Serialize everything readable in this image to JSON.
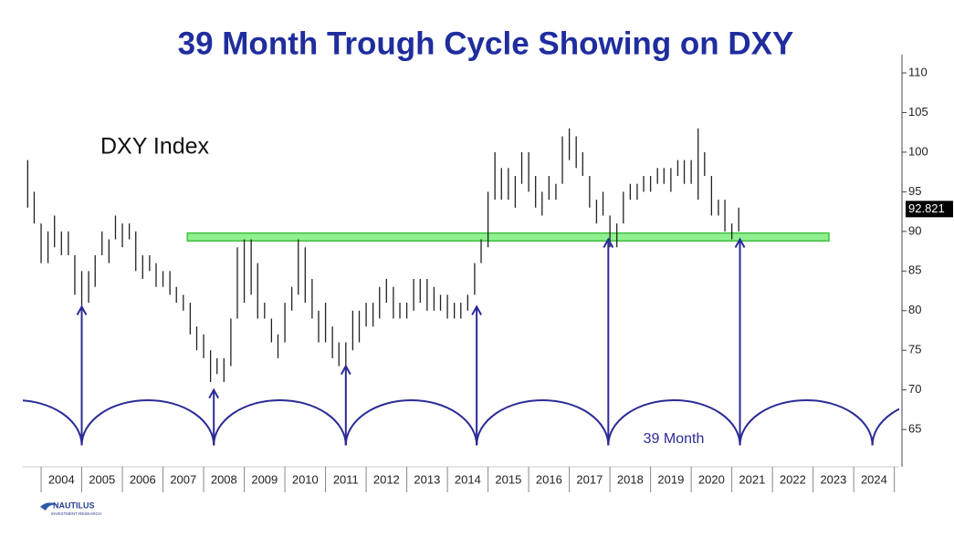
{
  "chart_data": {
    "type": "range_bar",
    "title": "39 Month Trough Cycle Showing on DXY",
    "annotation": "DXY Index",
    "cycle_label": "39 Month",
    "logo": {
      "name": "NAUTILUS",
      "tagline": "INVESTMENT RESEARCH"
    },
    "color": "#222222",
    "accent_color": "#2b2b96",
    "title_color": "#1f2d9e",
    "xlim": [
      2003.55,
      2025.12
    ],
    "ylim": [
      60.3,
      112.3
    ],
    "yticks": [
      65,
      70,
      75,
      80,
      85,
      90,
      95,
      100,
      105,
      110
    ],
    "xticks": [
      {
        "value": 2004.5,
        "label": "2004"
      },
      {
        "value": 2005.5,
        "label": "2005"
      },
      {
        "value": 2006.5,
        "label": "2006"
      },
      {
        "value": 2007.5,
        "label": "2007"
      },
      {
        "value": 2008.5,
        "label": "2008"
      },
      {
        "value": 2009.5,
        "label": "2009"
      },
      {
        "value": 2010.5,
        "label": "2010"
      },
      {
        "value": 2011.5,
        "label": "2011"
      },
      {
        "value": 2012.5,
        "label": "2012"
      },
      {
        "value": 2013.5,
        "label": "2013"
      },
      {
        "value": 2014.5,
        "label": "2014"
      },
      {
        "value": 2015.5,
        "label": "2015"
      },
      {
        "value": 2016.5,
        "label": "2016"
      },
      {
        "value": 2017.5,
        "label": "2017"
      },
      {
        "value": 2018.5,
        "label": "2018"
      },
      {
        "value": 2019.5,
        "label": "2019"
      },
      {
        "value": 2020.5,
        "label": "2020"
      },
      {
        "value": 2021.5,
        "label": "2021"
      },
      {
        "value": 2022.5,
        "label": "2022"
      },
      {
        "value": 2023.5,
        "label": "2023"
      },
      {
        "value": 2024.5,
        "label": "2024"
      }
    ],
    "last_value": 92.821,
    "x": [
      2003.67,
      2003.83,
      2004.0,
      2004.17,
      2004.33,
      2004.5,
      2004.67,
      2004.83,
      2005.0,
      2005.17,
      2005.33,
      2005.5,
      2005.67,
      2005.83,
      2006.0,
      2006.17,
      2006.33,
      2006.5,
      2006.67,
      2006.83,
      2007.0,
      2007.17,
      2007.33,
      2007.5,
      2007.67,
      2007.83,
      2008.0,
      2008.17,
      2008.33,
      2008.5,
      2008.67,
      2008.83,
      2009.0,
      2009.17,
      2009.33,
      2009.5,
      2009.67,
      2009.83,
      2010.0,
      2010.17,
      2010.33,
      2010.5,
      2010.67,
      2010.83,
      2011.0,
      2011.17,
      2011.33,
      2011.5,
      2011.67,
      2011.83,
      2012.0,
      2012.17,
      2012.33,
      2012.5,
      2012.67,
      2012.83,
      2013.0,
      2013.17,
      2013.33,
      2013.5,
      2013.67,
      2013.83,
      2014.0,
      2014.17,
      2014.33,
      2014.5,
      2014.67,
      2014.83,
      2015.0,
      2015.17,
      2015.33,
      2015.5,
      2015.67,
      2015.83,
      2016.0,
      2016.17,
      2016.33,
      2016.5,
      2016.67,
      2016.83,
      2017.0,
      2017.17,
      2017.33,
      2017.5,
      2017.67,
      2017.83,
      2018.0,
      2018.17,
      2018.33,
      2018.5,
      2018.67,
      2018.83,
      2019.0,
      2019.17,
      2019.33,
      2019.5,
      2019.67,
      2019.83,
      2020.0,
      2020.17,
      2020.33,
      2020.5,
      2020.67,
      2020.83,
      2021.0,
      2021.17
    ],
    "low": [
      93,
      91,
      86,
      86,
      88,
      87,
      87,
      82,
      80,
      81,
      83,
      87,
      86,
      89,
      88,
      89,
      85,
      84,
      85,
      83,
      83,
      82,
      81,
      80,
      77,
      75,
      74,
      71,
      72,
      71,
      73,
      79,
      81,
      82,
      79,
      79,
      76,
      74,
      76,
      80,
      82,
      81,
      79,
      76,
      76,
      74,
      73,
      73,
      75,
      76,
      78,
      78,
      79,
      81,
      79,
      79,
      79,
      80,
      81,
      80,
      80,
      80,
      79,
      79,
      79,
      80,
      82,
      86,
      88,
      94,
      94,
      94,
      93,
      96,
      95,
      93,
      92,
      94,
      94,
      96,
      99,
      98,
      97,
      93,
      91,
      92,
      88,
      88,
      91,
      94,
      94,
      95,
      95,
      96,
      96,
      95,
      97,
      96,
      96,
      94,
      97,
      92,
      92,
      90,
      89,
      90
    ],
    "high": [
      99,
      95,
      91,
      90,
      92,
      90,
      90,
      87,
      85,
      85,
      87,
      90,
      89,
      92,
      91,
      91,
      90,
      87,
      87,
      86,
      85,
      85,
      83,
      82,
      81,
      78,
      77,
      75,
      74,
      74,
      79,
      88,
      89,
      89,
      86,
      81,
      79,
      77,
      81,
      83,
      89,
      88,
      84,
      80,
      81,
      78,
      76,
      76,
      80,
      80,
      81,
      81,
      83,
      84,
      83,
      81,
      81,
      84,
      84,
      84,
      83,
      82,
      82,
      81,
      81,
      82,
      86,
      89,
      95,
      100,
      98,
      98,
      97,
      100,
      100,
      97,
      95,
      97,
      96,
      102,
      103,
      102,
      100,
      97,
      94,
      95,
      92,
      91,
      95,
      96,
      96,
      97,
      97,
      98,
      98,
      98,
      99,
      99,
      99,
      103,
      100,
      97,
      94,
      94,
      91,
      93
    ],
    "band": {
      "from": 88.8,
      "to": 89.8,
      "x": [
        2007.6,
        2023.39
      ],
      "color": "#8ef08e",
      "edge": "#3fbf3f"
    },
    "cycle": {
      "troughs": [
        2005.0,
        2008.25,
        2011.5,
        2014.72,
        2017.96,
        2021.2,
        2024.46
      ],
      "peak": 68.7,
      "trough_level": 63
    },
    "arrow_tips": [
      80.5,
      70,
      73,
      80.5,
      89,
      89
    ]
  }
}
